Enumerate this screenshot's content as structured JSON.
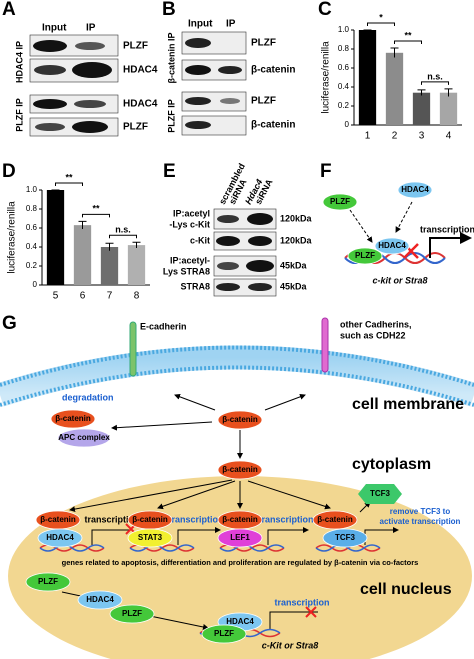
{
  "panel_a": {
    "label": "A",
    "columns": [
      "Input",
      "IP"
    ],
    "groups": [
      "HDAC4 IP",
      "PLZF IP"
    ],
    "rows": [
      "PLZF",
      "HDAC4",
      "HDAC4",
      "PLZF"
    ]
  },
  "panel_b": {
    "label": "B",
    "columns": [
      "Input",
      "IP"
    ],
    "groups": [
      "β-catenin IP",
      "PLZF IP"
    ],
    "rows": [
      "PLZF",
      "β-catenin",
      "PLZF",
      "β-catenin"
    ]
  },
  "chart_data": [
    {
      "type": "bar",
      "panel": "C",
      "ylabel": "luciferase/renilla",
      "categories": [
        "1",
        "2",
        "3",
        "4"
      ],
      "values": [
        1.0,
        0.76,
        0.34,
        0.34
      ],
      "errors": [
        0,
        0.05,
        0.03,
        0.04
      ],
      "colors": [
        "#000000",
        "#8c8c8c",
        "#555555",
        "#a6a6a6"
      ],
      "ylim": [
        0,
        1
      ],
      "yticks": [
        0,
        0.2,
        0.4,
        0.6,
        0.8,
        {
          "value": 1,
          "label": "1.0"
        }
      ],
      "significance": [
        "*",
        "**",
        "n.s."
      ]
    },
    {
      "type": "bar",
      "panel": "D",
      "ylabel": "luciferase/renilla",
      "categories": [
        "5",
        "6",
        "7",
        "8"
      ],
      "values": [
        1.0,
        0.63,
        0.4,
        0.42
      ],
      "errors": [
        0,
        0.04,
        0.04,
        0.03
      ],
      "colors": [
        "#000000",
        "#9a9a9a",
        "#6e6e6e",
        "#b0b0b0"
      ],
      "ylim": [
        0,
        1
      ],
      "yticks": [
        0,
        0.2,
        0.4,
        0.6,
        0.8,
        {
          "value": 1,
          "label": "1.0"
        }
      ],
      "significance": [
        "**",
        "**",
        "n.s."
      ]
    }
  ],
  "panel_e": {
    "label": "E",
    "columns": [
      [
        "scrambled",
        "siRNA"
      ],
      [
        "Hdac4",
        "siRNA"
      ]
    ],
    "rows": [
      {
        "label": [
          "IP:acetyl",
          "-Lys c-Kit"
        ],
        "size": "120kDa"
      },
      {
        "label": [
          "c-Kit"
        ],
        "size": "120kDa"
      },
      {
        "label": [
          "IP:acetyl-",
          "Lys STRA8"
        ],
        "size": "45kDa"
      },
      {
        "label": [
          "STRA8"
        ],
        "size": "45kDa"
      }
    ]
  },
  "panel_f": {
    "label": "F",
    "nodes": [
      "PLZF",
      "HDAC4",
      "HDAC4",
      "PLZF"
    ],
    "transcription": "transcription",
    "genes": "c-kit or Stra8"
  },
  "panel_g": {
    "label": "G",
    "e_cadherin": "E-cadherin",
    "other_cadherins": [
      "other Cadherins,",
      "such as CDH22"
    ],
    "cell_membrane": "cell membrane",
    "degradation": "degradation",
    "cytoplasm": "cytoplasm",
    "cell_nucleus": "cell nucleus",
    "transcription_labels": [
      "transcription",
      "transcription",
      "transcription",
      "transcription"
    ],
    "remove_tcf3": [
      "remove TCF3 to",
      "activate transcription"
    ],
    "genes_note": "genes related to apoptosis, differentiation and proliferation are regulated by β-catenin via co-factors",
    "target_genes": "c-Kit or Stra8",
    "nodes": [
      "β-catenin",
      "β-catenin",
      "APC complex",
      "β-catenin",
      "β-catenin",
      "HDAC4",
      "β-catenin",
      "STAT3",
      "β-catenin",
      "LEF1",
      "β-catenin",
      "TCF3",
      "TCF3",
      "PLZF",
      "HDAC4",
      "PLZF",
      "HDAC4",
      "PLZF"
    ]
  }
}
